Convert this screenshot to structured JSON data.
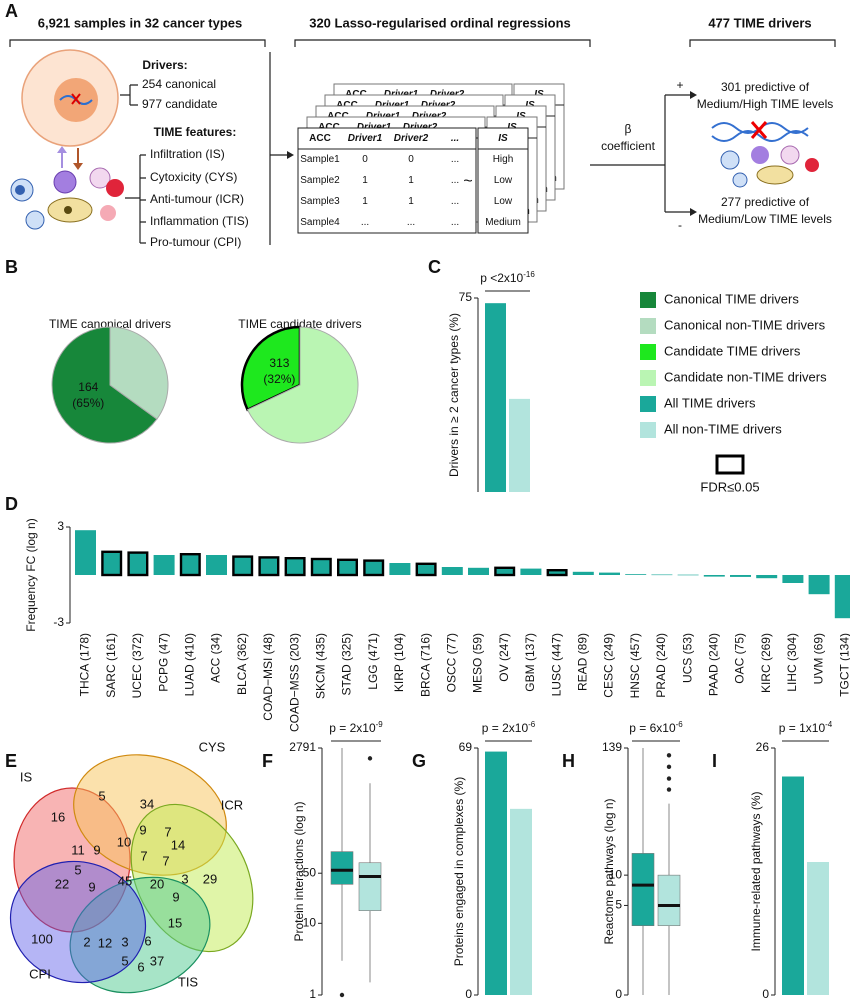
{
  "panel_labels": [
    "A",
    "B",
    "C",
    "D",
    "E",
    "F",
    "G",
    "H",
    "I"
  ],
  "panel_a": {
    "headers": [
      "6,921 samples in 32 cancer types",
      "320 Lasso-regularised ordinal regressions",
      "477 TIME drivers"
    ],
    "drivers_title": "Drivers:",
    "drivers": [
      "254 canonical",
      "977 candidate"
    ],
    "features_title": "TIME features:",
    "features": [
      "Infiltration (IS)",
      "Cytoxicity (CYS)",
      "Anti-tumour (ICR)",
      "Inflammation (TIS)",
      "Pro-tumour (CPI)"
    ],
    "table": {
      "header": [
        "ACC",
        "Driver1",
        "Driver2",
        "..."
      ],
      "rows": [
        [
          "Sample1",
          "0",
          "0",
          "..."
        ],
        [
          "Sample2",
          "1",
          "1",
          "..."
        ],
        [
          "Sample3",
          "1",
          "1",
          "..."
        ],
        [
          "Sample4",
          "...",
          "...",
          "..."
        ]
      ]
    },
    "tilde": "~",
    "outcome": {
      "header": "IS",
      "rows": [
        "High",
        "Low",
        "Low",
        "Medium"
      ]
    },
    "beta": [
      "β",
      "coefficient"
    ],
    "plus": "+",
    "minus": "-",
    "positive": [
      "301 predictive of",
      "Medium/High TIME levels"
    ],
    "negative": [
      "277 predictive of",
      "Medium/Low TIME levels"
    ]
  },
  "chart_data": [
    {
      "type": "pie",
      "title": "TIME canonical drivers",
      "categories": [
        "Canonical TIME drivers",
        "Canonical non-TIME drivers"
      ],
      "values": [
        65,
        35
      ],
      "value_labels": [
        "(65%)",
        null
      ],
      "count_label": "164",
      "colors": [
        "#17873a",
        "#b4dcc0"
      ],
      "fdr": [
        false,
        false
      ]
    },
    {
      "type": "pie",
      "title": "TIME candidate drivers",
      "categories": [
        "Candidate TIME drivers",
        "Candidate non-TIME drivers"
      ],
      "values": [
        32,
        68
      ],
      "value_labels": [
        "(32%)",
        null
      ],
      "count_label": "313",
      "colors": [
        "#1ee81e",
        "#baf5b3"
      ],
      "fdr": [
        true,
        false
      ]
    },
    {
      "type": "bar",
      "ylabel": "Drivers in ≥ 2 cancer types (%)",
      "categories": [
        "All TIME drivers",
        "All non-TIME drivers"
      ],
      "values": [
        73,
        36
      ],
      "colors": [
        "#1aa89a",
        "#b2e4dd"
      ],
      "ylim": [
        0,
        75
      ],
      "yticks": [
        75
      ],
      "p_value": {
        "text": "p <2x10",
        "exponent": "-16"
      }
    },
    {
      "type": "bar",
      "ylabel": "Frequency FC (log n)",
      "color": "#1aa89a",
      "ylim": [
        -3,
        3
      ],
      "yticks": [
        -3,
        3
      ],
      "categories": [
        "THCA (178)",
        "SARC (161)",
        "UCEC (372)",
        "PCPG (47)",
        "LUAD (410)",
        "ACC (34)",
        "BLCA (362)",
        "COAD−MSI (48)",
        "COAD−MSS (203)",
        "SKCM (435)",
        "STAD (325)",
        "LGG (471)",
        "KIRP (104)",
        "BRCA (716)",
        "OSCC (77)",
        "MESO (59)",
        "OV (247)",
        "GBM (137)",
        "LUSC (447)",
        "READ (89)",
        "CESC (249)",
        "HNSC (457)",
        "PRAD (240)",
        "UCS (53)",
        "PAAD (240)",
        "OAC (75)",
        "KIRC (269)",
        "LIHC (304)",
        "UVM (69)",
        "TGCT (134)"
      ],
      "values": [
        2.8,
        1.45,
        1.4,
        1.25,
        1.3,
        1.25,
        1.15,
        1.1,
        1.05,
        1.0,
        0.95,
        0.9,
        0.75,
        0.7,
        0.5,
        0.45,
        0.45,
        0.4,
        0.3,
        0.2,
        0.15,
        0.05,
        0.03,
        0.02,
        -0.1,
        -0.12,
        -0.2,
        -0.5,
        -1.2,
        -2.7
      ],
      "fdr": [
        false,
        true,
        true,
        false,
        true,
        false,
        true,
        true,
        true,
        true,
        true,
        true,
        false,
        true,
        false,
        false,
        true,
        false,
        true,
        false,
        false,
        false,
        false,
        false,
        false,
        false,
        false,
        false,
        false,
        false
      ]
    },
    {
      "type": "box",
      "ylabel": "Protein interactions (log n)",
      "scale": "log",
      "ylim": [
        1,
        2791
      ],
      "yticks": [
        1,
        10,
        50,
        2791
      ],
      "p_value": {
        "text": "p = 2x10",
        "exponent": "-9"
      },
      "series": [
        {
          "color": "#1aa89a",
          "whisker_low": 3,
          "q1": 35,
          "median": 55,
          "q3": 100,
          "whisker_high": 2791,
          "outliers": [
            1
          ]
        },
        {
          "color": "#b2e4dd",
          "whisker_low": 1.5,
          "q1": 15,
          "median": 45,
          "q3": 70,
          "whisker_high": 900,
          "outliers": [
            2000
          ]
        }
      ]
    },
    {
      "type": "bar",
      "ylabel": "Proteins engaged in complexes (%)",
      "categories": [
        "All TIME drivers",
        "All non-TIME drivers"
      ],
      "values": [
        68,
        52
      ],
      "colors": [
        "#1aa89a",
        "#b2e4dd"
      ],
      "ylim": [
        0,
        69
      ],
      "yticks": [
        0,
        69
      ],
      "p_value": {
        "text": "p = 2x10",
        "exponent": "-6"
      }
    },
    {
      "type": "box",
      "ylabel": "Reactome pathways (log n)",
      "scale": "log1p",
      "ylim": [
        0,
        139
      ],
      "yticks": [
        0,
        5,
        10,
        139
      ],
      "p_value": {
        "text": "p = 6x10",
        "exponent": "-6"
      },
      "series": [
        {
          "color": "#1aa89a",
          "whisker_low": 0,
          "q1": 3,
          "median": 8,
          "q3": 16,
          "whisker_high": 139,
          "outliers": []
        },
        {
          "color": "#b2e4dd",
          "whisker_low": 0,
          "q1": 3,
          "median": 5,
          "q3": 10,
          "whisker_high": 45,
          "outliers": [
            60,
            75,
            95,
            120
          ]
        }
      ]
    },
    {
      "type": "bar",
      "ylabel": "Immune-related pathways (%)",
      "categories": [
        "All TIME drivers",
        "All non-TIME drivers"
      ],
      "values": [
        23,
        14
      ],
      "colors": [
        "#1aa89a",
        "#b2e4dd"
      ],
      "ylim": [
        0,
        26
      ],
      "yticks": [
        0,
        26
      ],
      "p_value": {
        "text": "p = 1x10",
        "exponent": "-4"
      }
    }
  ],
  "fdr_label": "FDR≤0.05",
  "venn": {
    "sets": [
      "IS",
      "CYS",
      "ICR",
      "TIS",
      "CPI"
    ],
    "counts": [
      16,
      5,
      34,
      9,
      7,
      14,
      11,
      9,
      10,
      7,
      7,
      3,
      5,
      29,
      22,
      9,
      45,
      20,
      9,
      2,
      3,
      6,
      15,
      100,
      12,
      5,
      6,
      37
    ]
  }
}
